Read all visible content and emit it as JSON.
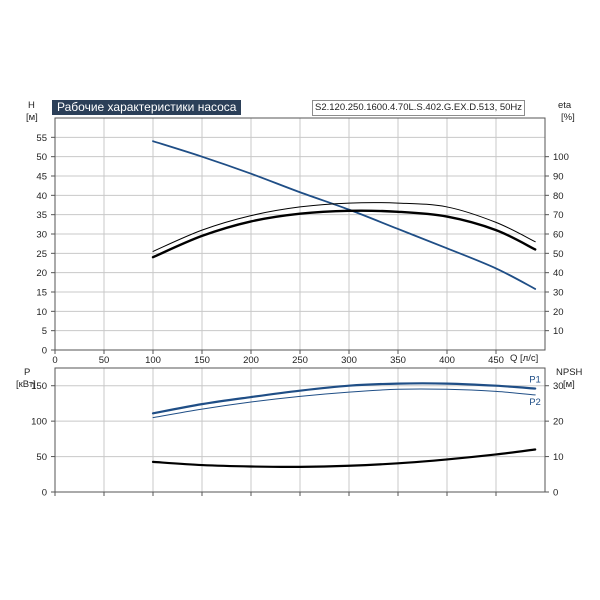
{
  "header": {
    "title": "Рабочие характеристики насоса",
    "model": "S2.120.250.1600.4.70L.S.402.G.EX.D.513, 50Hz"
  },
  "top_axes": {
    "left_name": "H",
    "left_unit": "[м]",
    "right_name": "eta",
    "right_unit": "[%]",
    "x_label": "Q [л/с]"
  },
  "bottom_axes": {
    "left_name": "P",
    "left_unit": "[кВт]",
    "right_name": "NPSH",
    "right_unit": "[м]"
  },
  "colors": {
    "grid": "#c8c8c8",
    "frame": "#555555",
    "head": "#1f4e86",
    "eta": "#000000",
    "power": "#1f4e86",
    "npsh": "#000000"
  },
  "chart_data": [
    {
      "type": "line",
      "panel": "top",
      "title": "Рабочие характеристики насоса",
      "xlabel": "Q [л/с]",
      "xlim": [
        0,
        500
      ],
      "x_ticks": [
        0,
        50,
        100,
        150,
        200,
        250,
        300,
        350,
        400,
        450
      ],
      "y_left": {
        "label": "H [м]",
        "lim": [
          0,
          60
        ],
        "ticks": [
          0,
          5,
          10,
          15,
          20,
          25,
          30,
          35,
          40,
          45,
          50,
          55
        ]
      },
      "y_right": {
        "label": "eta [%]",
        "lim": [
          0,
          120
        ],
        "ticks": [
          10,
          20,
          30,
          40,
          50,
          60,
          70,
          80,
          90,
          100
        ]
      },
      "grid": true,
      "series": [
        {
          "id": "head",
          "axis": "left",
          "x": [
            100,
            150,
            200,
            250,
            300,
            350,
            400,
            450,
            490
          ],
          "y": [
            54,
            50,
            45.6,
            40.8,
            36.3,
            31.3,
            26.3,
            21.1,
            15.8
          ]
        },
        {
          "id": "eta_a",
          "axis": "right",
          "x": [
            100,
            150,
            200,
            250,
            300,
            350,
            400,
            450,
            490
          ],
          "y": [
            51,
            62,
            69.5,
            74,
            76,
            76,
            74,
            66,
            56
          ]
        },
        {
          "id": "eta_b",
          "axis": "right",
          "x": [
            100,
            150,
            200,
            250,
            300,
            350,
            400,
            450,
            490
          ],
          "y": [
            48,
            59,
            66.5,
            70.5,
            72,
            71.5,
            69,
            62,
            52
          ]
        }
      ]
    },
    {
      "type": "line",
      "panel": "bottom",
      "xlim": [
        0,
        500
      ],
      "x_ticks": [
        0,
        50,
        100,
        150,
        200,
        250,
        300,
        350,
        400,
        450
      ],
      "y_left": {
        "label": "P [кВт]",
        "lim": [
          0,
          175
        ],
        "ticks": [
          0,
          50,
          100,
          150
        ]
      },
      "y_right": {
        "label": "NPSH [м]",
        "lim": [
          0,
          35
        ],
        "ticks": [
          0,
          10,
          20,
          30
        ]
      },
      "grid": true,
      "series": [
        {
          "name": "P1",
          "axis": "left",
          "x": [
            100,
            150,
            200,
            250,
            300,
            350,
            400,
            450,
            490
          ],
          "y": [
            111,
            124,
            134,
            143,
            150,
            153,
            153,
            150,
            146
          ]
        },
        {
          "name": "P2",
          "axis": "left",
          "x": [
            100,
            150,
            200,
            250,
            300,
            350,
            400,
            450,
            490
          ],
          "y": [
            105,
            117,
            127,
            135,
            141,
            145,
            145,
            142,
            137
          ]
        },
        {
          "id": "npsh",
          "axis": "right",
          "x": [
            100,
            150,
            200,
            250,
            300,
            350,
            400,
            450,
            490
          ],
          "y": [
            8.5,
            7.6,
            7.2,
            7.1,
            7.4,
            8.1,
            9.2,
            10.6,
            12
          ]
        }
      ]
    }
  ]
}
